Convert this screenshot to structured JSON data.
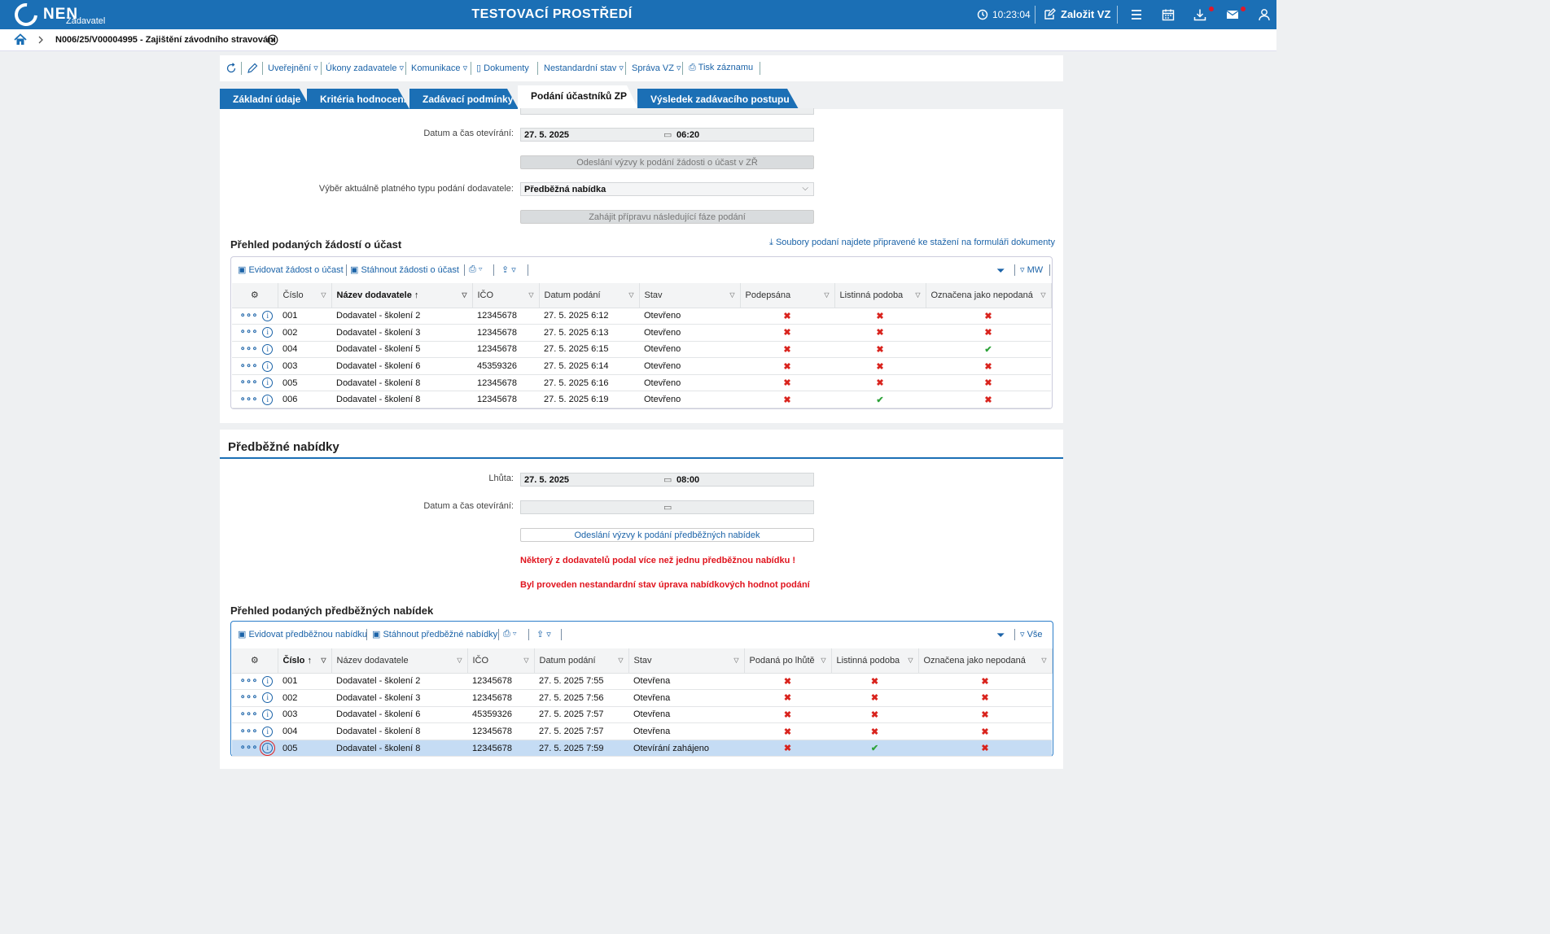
{
  "header": {
    "logo_text": "NEN",
    "logo_sub": "Zadavatel",
    "env_title": "TESTOVACÍ PROSTŘEDÍ",
    "clock": "10:23:04",
    "new_vz": "Založit VZ",
    "icons": [
      "clock-icon",
      "edit-icon",
      "menu-icon",
      "calendar-icon",
      "download-icon",
      "mail-icon",
      "user-icon"
    ]
  },
  "breadcrumb": {
    "text": "N006/25/V00004995 - Zajištění závodního stravování"
  },
  "toolbar": {
    "publish": "Uveřejnění",
    "actions": "Úkony zadavatele",
    "communication": "Komunikace",
    "documents": "Dokumenty",
    "nonstandard": "Nestandardní stav",
    "management": "Správa VZ",
    "print": "Tisk záznamu"
  },
  "tabs": [
    "Základní údaje",
    "Kritéria hodnocení",
    "Zadávací podmínky",
    "Podání účastníků ZP",
    "Výsledek zadávacího postupu"
  ],
  "section1": {
    "open_label": "Datum a čas otevírání:",
    "open_date": "27. 5. 2025",
    "open_time": "06:20",
    "btn_send": "Odeslání výzvy k podání žádosti o účast v ZŘ",
    "type_label": "Výběr aktuálně platného typu podání dodavatele:",
    "type_value": "Předběžná nabídka",
    "btn_next": "Zahájit přípravu následující fáze podání",
    "overview_title": "Přehled podaných žádostí o účast",
    "files_link": "Soubory podaní najdete připravené ke stažení na formuláři dokumenty",
    "tool_register": "Evidovat žádost o účast",
    "tool_download": "Stáhnout žádosti o účast",
    "view_name": "MW",
    "columns": [
      "Číslo",
      "Název dodavatele",
      "IČO",
      "Datum podání",
      "Stav",
      "Podepsána",
      "Listinná podoba",
      "Označena jako nepodaná"
    ],
    "rows": [
      {
        "num": "001",
        "name": "Dodavatel - školení 2",
        "ico": "12345678",
        "date": "27. 5. 2025 6:12",
        "state": "Otevřeno",
        "a": "x",
        "b": "x",
        "c": "x"
      },
      {
        "num": "002",
        "name": "Dodavatel - školení 3",
        "ico": "12345678",
        "date": "27. 5. 2025 6:13",
        "state": "Otevřeno",
        "a": "x",
        "b": "x",
        "c": "x"
      },
      {
        "num": "004",
        "name": "Dodavatel - školení 5",
        "ico": "12345678",
        "date": "27. 5. 2025 6:15",
        "state": "Otevřeno",
        "a": "x",
        "b": "x",
        "c": "ok"
      },
      {
        "num": "003",
        "name": "Dodavatel - školení 6",
        "ico": "45359326",
        "date": "27. 5. 2025 6:14",
        "state": "Otevřeno",
        "a": "x",
        "b": "x",
        "c": "x"
      },
      {
        "num": "005",
        "name": "Dodavatel - školení 8",
        "ico": "12345678",
        "date": "27. 5. 2025 6:16",
        "state": "Otevřeno",
        "a": "x",
        "b": "x",
        "c": "x"
      },
      {
        "num": "006",
        "name": "Dodavatel - školení 8",
        "ico": "12345678",
        "date": "27. 5. 2025 6:19",
        "state": "Otevřeno",
        "a": "x",
        "b": "ok",
        "c": "x"
      }
    ]
  },
  "section2": {
    "title": "Předběžné nabídky",
    "deadline_label": "Lhůta:",
    "deadline_date": "27. 5. 2025",
    "deadline_time": "08:00",
    "open_label": "Datum a čas otevírání:",
    "btn_send": "Odeslání výzvy k podání předběžných nabídek",
    "error1": "Některý z dodavatelů podal více než jednu předběžnou nabídku !",
    "error2": "Byl proveden nestandardní stav úprava nabídkových hodnot podání",
    "overview_title": "Přehled podaných předběžných nabídek",
    "tool_register": "Evidovat předběžnou nabídku",
    "tool_download": "Stáhnout předběžné nabídky",
    "view_name": "Vše",
    "columns": [
      "Číslo",
      "Název dodavatele",
      "IČO",
      "Datum podání",
      "Stav",
      "Podaná po lhůtě",
      "Listinná podoba",
      "Označena jako nepodaná"
    ],
    "rows": [
      {
        "num": "001",
        "name": "Dodavatel - školení 2",
        "ico": "12345678",
        "date": "27. 5. 2025 7:55",
        "state": "Otevřena",
        "a": "x",
        "b": "x",
        "c": "x"
      },
      {
        "num": "002",
        "name": "Dodavatel - školení 3",
        "ico": "12345678",
        "date": "27. 5. 2025 7:56",
        "state": "Otevřena",
        "a": "x",
        "b": "x",
        "c": "x"
      },
      {
        "num": "003",
        "name": "Dodavatel - školení 6",
        "ico": "45359326",
        "date": "27. 5. 2025 7:57",
        "state": "Otevřena",
        "a": "x",
        "b": "x",
        "c": "x"
      },
      {
        "num": "004",
        "name": "Dodavatel - školení 8",
        "ico": "12345678",
        "date": "27. 5. 2025 7:57",
        "state": "Otevřena",
        "a": "x",
        "b": "x",
        "c": "x"
      },
      {
        "num": "005",
        "name": "Dodavatel - školení 8",
        "ico": "12345678",
        "date": "27. 5. 2025 7:59",
        "state": "Otevírání zahájeno",
        "a": "x",
        "b": "ok",
        "c": "x"
      }
    ]
  }
}
